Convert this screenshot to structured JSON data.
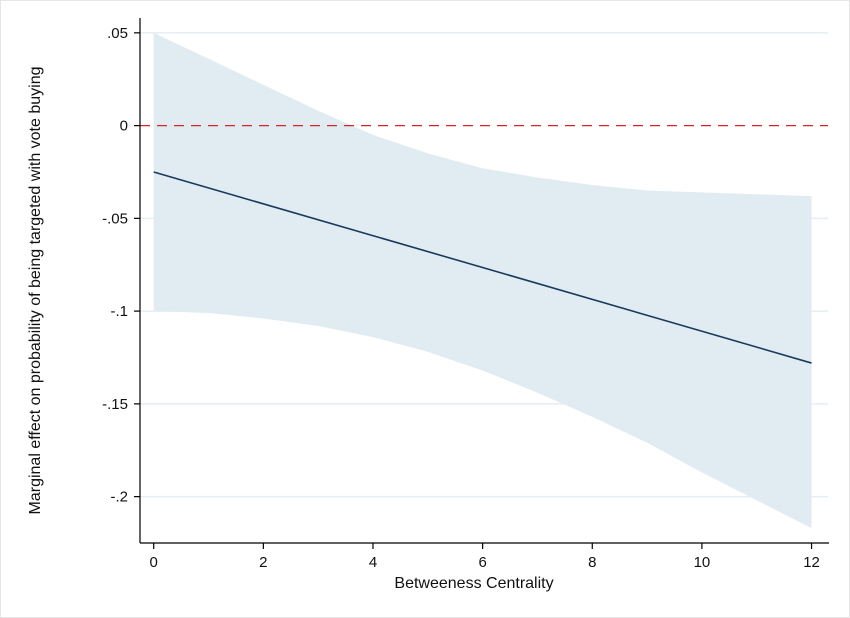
{
  "chart_data": {
    "type": "line",
    "title": "",
    "xlabel": "Betweeness Centrality",
    "ylabel": "Marginal effect on probability of being targeted with vote buying",
    "xlim": [
      -0.25,
      12.3
    ],
    "ylim": [
      -0.225,
      0.058
    ],
    "x_ticks": [
      0,
      2,
      4,
      6,
      8,
      10,
      12
    ],
    "x_tick_labels": [
      "0",
      "2",
      "4",
      "6",
      "8",
      "10",
      "12"
    ],
    "y_ticks": [
      0.05,
      0,
      -0.05,
      -0.1,
      -0.15,
      -0.2
    ],
    "y_tick_labels": [
      ".05",
      "0",
      "-.05",
      "-.1",
      "-.15",
      "-.2"
    ],
    "grid": true,
    "legend": "none",
    "series": [
      {
        "type": "line",
        "x": [
          0,
          12
        ],
        "y": [
          -0.025,
          -0.128
        ]
      },
      {
        "type": "confidence-band",
        "x": [
          0,
          1,
          2,
          3,
          4,
          5,
          6,
          7,
          8,
          9,
          10,
          11,
          12
        ],
        "upper": [
          0.05,
          0.036,
          0.022,
          0.008,
          -0.005,
          -0.015,
          -0.023,
          -0.028,
          -0.032,
          -0.035,
          -0.036,
          -0.037,
          -0.038
        ],
        "lower": [
          -0.1,
          -0.101,
          -0.104,
          -0.108,
          -0.114,
          -0.122,
          -0.132,
          -0.144,
          -0.157,
          -0.171,
          -0.187,
          -0.202,
          -0.217
        ]
      }
    ],
    "reference_line": {
      "y": 0,
      "style": "dashed"
    },
    "colors": {
      "line": "#1a3a5c",
      "band": "#e1ecf2",
      "reference": "#d62728",
      "grid": "#e4eef3",
      "axis": "#000000"
    }
  }
}
